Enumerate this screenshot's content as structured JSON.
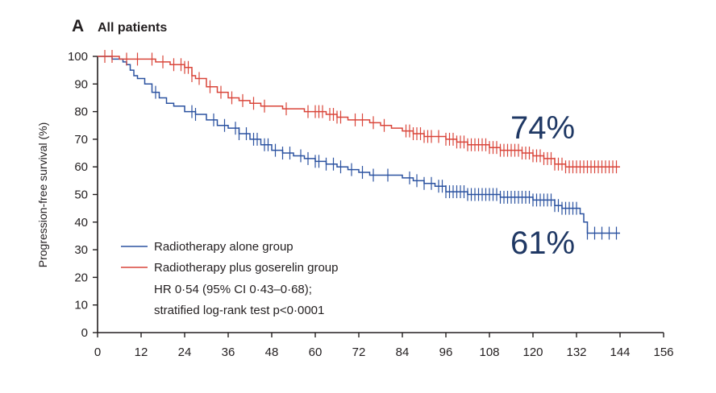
{
  "panel": {
    "letter": "A",
    "title": "All patients"
  },
  "chart_data": {
    "type": "line",
    "title": "All patients",
    "xlabel": "",
    "ylabel": "Progression-free survival (%)",
    "xlim": [
      0,
      156
    ],
    "ylim": [
      0,
      100
    ],
    "x_ticks": [
      0,
      12,
      24,
      36,
      48,
      60,
      72,
      84,
      96,
      108,
      120,
      132,
      144,
      156
    ],
    "y_ticks": [
      0,
      10,
      20,
      30,
      40,
      50,
      60,
      70,
      80,
      90,
      100
    ],
    "grid": false,
    "legend_position": "bottom-left",
    "series": [
      {
        "name": "Radiotherapy alone group",
        "color": "#2b52a0",
        "points": [
          [
            0,
            100
          ],
          [
            4,
            99
          ],
          [
            7,
            98
          ],
          [
            8,
            97
          ],
          [
            9,
            95
          ],
          [
            10,
            93
          ],
          [
            11,
            92
          ],
          [
            13,
            90
          ],
          [
            15,
            87
          ],
          [
            17,
            85
          ],
          [
            19,
            83
          ],
          [
            21,
            82
          ],
          [
            24,
            80
          ],
          [
            27,
            79
          ],
          [
            30,
            77
          ],
          [
            33,
            75
          ],
          [
            36,
            74
          ],
          [
            39,
            72
          ],
          [
            42,
            70
          ],
          [
            45,
            68
          ],
          [
            48,
            66
          ],
          [
            51,
            65
          ],
          [
            54,
            64
          ],
          [
            57,
            63
          ],
          [
            60,
            62
          ],
          [
            63,
            61
          ],
          [
            66,
            60
          ],
          [
            69,
            59
          ],
          [
            72,
            58
          ],
          [
            75,
            57
          ],
          [
            78,
            57
          ],
          [
            81,
            57
          ],
          [
            84,
            56
          ],
          [
            87,
            55
          ],
          [
            90,
            54
          ],
          [
            93,
            53
          ],
          [
            96,
            51
          ],
          [
            99,
            51
          ],
          [
            102,
            50
          ],
          [
            105,
            50
          ],
          [
            108,
            50
          ],
          [
            111,
            49
          ],
          [
            114,
            49
          ],
          [
            117,
            49
          ],
          [
            120,
            48
          ],
          [
            123,
            48
          ],
          [
            126,
            46
          ],
          [
            128,
            45
          ],
          [
            130,
            45
          ],
          [
            132,
            45
          ],
          [
            133,
            43
          ],
          [
            134,
            40
          ],
          [
            135,
            36
          ],
          [
            138,
            36
          ],
          [
            141,
            36
          ],
          [
            144,
            36
          ]
        ],
        "censor_x": [
          16,
          26,
          27,
          32,
          35,
          38,
          39,
          41,
          43,
          44,
          46,
          47,
          49,
          51,
          53,
          56,
          58,
          60,
          61,
          63,
          65,
          67,
          70,
          73,
          76,
          80,
          86,
          88,
          90,
          92,
          94,
          95,
          96,
          97,
          98,
          99,
          100,
          101,
          102,
          103,
          104,
          105,
          106,
          107,
          108,
          109,
          110,
          111,
          112,
          113,
          114,
          115,
          116,
          117,
          118,
          119,
          120,
          121,
          122,
          123,
          124,
          125,
          126,
          127,
          128,
          129,
          130,
          131,
          132,
          135,
          137,
          139,
          141,
          143
        ]
      },
      {
        "name": "Radiotherapy plus goserelin group",
        "color": "#d9453a",
        "points": [
          [
            0,
            100
          ],
          [
            6,
            99
          ],
          [
            12,
            99
          ],
          [
            16,
            98
          ],
          [
            20,
            97
          ],
          [
            24,
            96
          ],
          [
            26,
            93
          ],
          [
            27,
            92
          ],
          [
            30,
            89
          ],
          [
            33,
            87
          ],
          [
            36,
            85
          ],
          [
            39,
            84
          ],
          [
            42,
            83
          ],
          [
            45,
            82
          ],
          [
            48,
            82
          ],
          [
            51,
            81
          ],
          [
            54,
            81
          ],
          [
            57,
            80
          ],
          [
            60,
            80
          ],
          [
            63,
            79
          ],
          [
            66,
            78
          ],
          [
            69,
            77
          ],
          [
            72,
            77
          ],
          [
            75,
            76
          ],
          [
            78,
            75
          ],
          [
            81,
            74
          ],
          [
            84,
            73
          ],
          [
            87,
            72
          ],
          [
            90,
            71
          ],
          [
            93,
            71
          ],
          [
            96,
            70
          ],
          [
            99,
            69
          ],
          [
            102,
            68
          ],
          [
            105,
            68
          ],
          [
            108,
            67
          ],
          [
            111,
            66
          ],
          [
            114,
            66
          ],
          [
            117,
            65
          ],
          [
            120,
            64
          ],
          [
            123,
            63
          ],
          [
            126,
            61
          ],
          [
            129,
            60
          ],
          [
            132,
            60
          ],
          [
            135,
            60
          ],
          [
            138,
            60
          ],
          [
            141,
            60
          ],
          [
            144,
            60
          ]
        ],
        "censor_x": [
          2,
          4,
          8,
          11,
          15,
          18,
          21,
          23,
          24,
          25,
          26,
          28,
          31,
          34,
          37,
          40,
          43,
          46,
          52,
          58,
          60,
          61,
          62,
          64,
          65,
          66,
          67,
          71,
          73,
          76,
          79,
          85,
          86,
          87,
          88,
          89,
          90,
          91,
          92,
          94,
          96,
          97,
          98,
          99,
          100,
          101,
          102,
          103,
          104,
          105,
          106,
          107,
          108,
          109,
          110,
          111,
          112,
          113,
          114,
          115,
          116,
          117,
          118,
          119,
          120,
          121,
          122,
          123,
          124,
          125,
          126,
          127,
          128,
          129,
          130,
          131,
          132,
          133,
          134,
          135,
          136,
          137,
          138,
          139,
          140,
          141,
          142,
          143
        ]
      }
    ],
    "annotations": {
      "stats_line1": "HR 0·54 (95% CI 0·43–0·68);",
      "stats_line2": "stratified log-rank test p<0·0001",
      "label_goserelin": "74%",
      "label_alone": "61%"
    }
  }
}
